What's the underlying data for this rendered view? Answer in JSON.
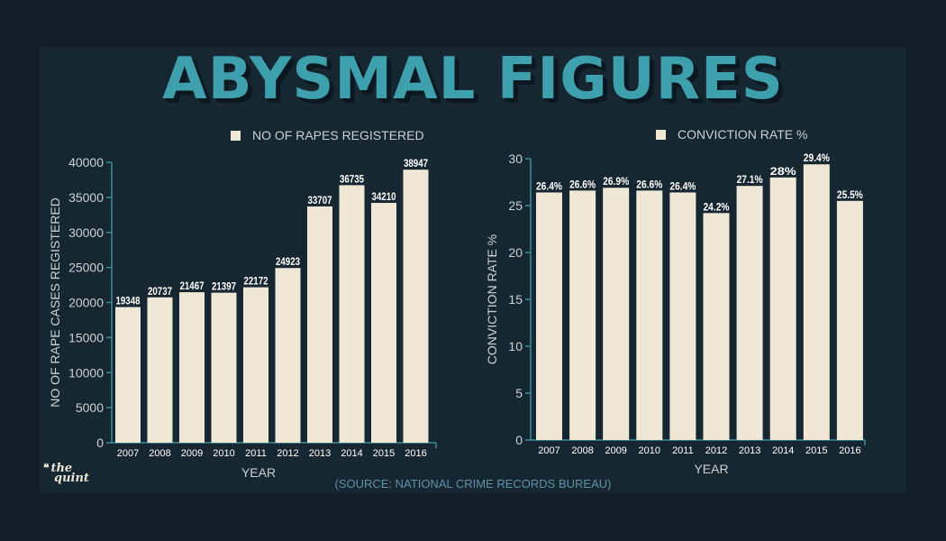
{
  "title": "ABYSMAL FIGURES",
  "source": "(SOURCE: NATIONAL CRIME RECORDS BUREAU)",
  "logo": {
    "line1": "the",
    "line2": "quint"
  },
  "colors": {
    "bar": "#efe8d6",
    "axis": "#3a8f9a",
    "title": "#3e9fad",
    "text": "#c6d2d4",
    "label": "#ffffff"
  },
  "chart_data": [
    {
      "type": "bar",
      "legend": "NO OF RAPES REGISTERED",
      "xlabel": "YEAR",
      "ylabel": "NO OF  RAPE CASES REGISTERED",
      "ylim": [
        0,
        40000
      ],
      "yticks": [
        0,
        5000,
        10000,
        15000,
        20000,
        25000,
        30000,
        35000,
        40000
      ],
      "categories": [
        "2007",
        "2008",
        "2009",
        "2010",
        "2011",
        "2012",
        "2013",
        "2014",
        "2015",
        "2016"
      ],
      "values": [
        19348,
        20737,
        21467,
        21397,
        22172,
        24923,
        33707,
        36735,
        34210,
        38947
      ],
      "value_labels": [
        "19348",
        "20737",
        "21467",
        "21397",
        "22172",
        "24923",
        "33707",
        "36735",
        "34210",
        "38947"
      ]
    },
    {
      "type": "bar",
      "legend": "CONVICTION RATE %",
      "xlabel": "YEAR",
      "ylabel": "CONVICTION RATE %",
      "ylim": [
        0,
        30
      ],
      "yticks": [
        0,
        5,
        10,
        15,
        20,
        25,
        30
      ],
      "categories": [
        "2007",
        "2008",
        "2009",
        "2010",
        "2011",
        "2012",
        "2013",
        "2014",
        "2015",
        "2016"
      ],
      "values": [
        26.4,
        26.6,
        26.9,
        26.6,
        26.4,
        24.2,
        27.1,
        28,
        29.4,
        25.5
      ],
      "value_labels": [
        "26.4%",
        "26.6%",
        "26.9%",
        "26.6%",
        "26.4%",
        "24.2%",
        "27.1%",
        "28%",
        "29.4%",
        "25.5%"
      ]
    }
  ]
}
